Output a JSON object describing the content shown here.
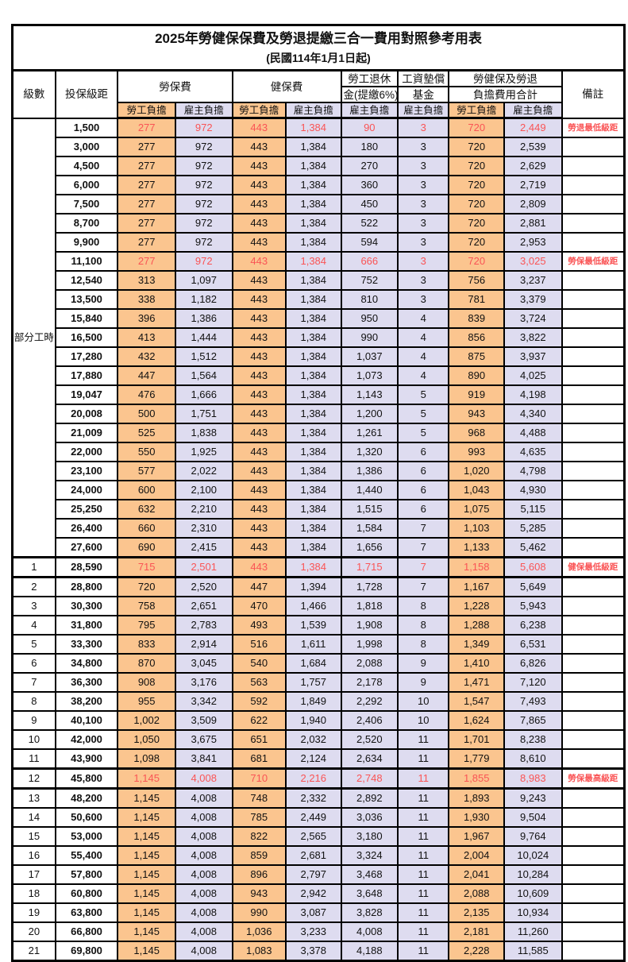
{
  "title": "2025年勞健保保費及勞退提繳三合一費用對照參考用表",
  "subtitle": "(民國114年1月1日起)",
  "header": {
    "level": "級數",
    "bracket": "投保級距",
    "labor_fee": "勞保費",
    "health_fee": "健保費",
    "pension_line1": "勞工退休",
    "pension_line2": "金(提繳6%)",
    "wage_fund_line1": "工資墊償",
    "wage_fund_line2": "基金",
    "total_line1": "勞健保及勞退",
    "total_line2": "負擔費用合計",
    "remark": "備註",
    "employee_label": "勞工負擔",
    "employer_label": "雇主負擔"
  },
  "part_time_label": "部分工時",
  "part_time_row_count": 23,
  "colors": {
    "employee_bg": "#fbc58f",
    "employer_bg": "#dedcf0",
    "red_text": "#fa5455",
    "border": "#000000"
  },
  "rows": [
    {
      "lv": "",
      "br": "1,500",
      "v": [
        "277",
        "972",
        "443",
        "1,384",
        "90",
        "3",
        "720",
        "2,449"
      ],
      "red": true,
      "rm": "勞退最低級距",
      "thick": false
    },
    {
      "lv": "",
      "br": "3,000",
      "v": [
        "277",
        "972",
        "443",
        "1,384",
        "180",
        "3",
        "720",
        "2,539"
      ],
      "red": false,
      "rm": "",
      "thick": false
    },
    {
      "lv": "",
      "br": "4,500",
      "v": [
        "277",
        "972",
        "443",
        "1,384",
        "270",
        "3",
        "720",
        "2,629"
      ],
      "red": false,
      "rm": "",
      "thick": false
    },
    {
      "lv": "",
      "br": "6,000",
      "v": [
        "277",
        "972",
        "443",
        "1,384",
        "360",
        "3",
        "720",
        "2,719"
      ],
      "red": false,
      "rm": "",
      "thick": false
    },
    {
      "lv": "",
      "br": "7,500",
      "v": [
        "277",
        "972",
        "443",
        "1,384",
        "450",
        "3",
        "720",
        "2,809"
      ],
      "red": false,
      "rm": "",
      "thick": false
    },
    {
      "lv": "",
      "br": "8,700",
      "v": [
        "277",
        "972",
        "443",
        "1,384",
        "522",
        "3",
        "720",
        "2,881"
      ],
      "red": false,
      "rm": "",
      "thick": false
    },
    {
      "lv": "",
      "br": "9,900",
      "v": [
        "277",
        "972",
        "443",
        "1,384",
        "594",
        "3",
        "720",
        "2,953"
      ],
      "red": false,
      "rm": "",
      "thick": false
    },
    {
      "lv": "",
      "br": "11,100",
      "v": [
        "277",
        "972",
        "443",
        "1,384",
        "666",
        "3",
        "720",
        "3,025"
      ],
      "red": true,
      "rm": "勞保最低級距",
      "thick": false
    },
    {
      "lv": "",
      "br": "12,540",
      "v": [
        "313",
        "1,097",
        "443",
        "1,384",
        "752",
        "3",
        "756",
        "3,237"
      ],
      "red": false,
      "rm": "",
      "thick": false
    },
    {
      "lv": "",
      "br": "13,500",
      "v": [
        "338",
        "1,182",
        "443",
        "1,384",
        "810",
        "3",
        "781",
        "3,379"
      ],
      "red": false,
      "rm": "",
      "thick": false
    },
    {
      "lv": "",
      "br": "15,840",
      "v": [
        "396",
        "1,386",
        "443",
        "1,384",
        "950",
        "4",
        "839",
        "3,724"
      ],
      "red": false,
      "rm": "",
      "thick": false
    },
    {
      "lv": "",
      "br": "16,500",
      "v": [
        "413",
        "1,444",
        "443",
        "1,384",
        "990",
        "4",
        "856",
        "3,822"
      ],
      "red": false,
      "rm": "",
      "thick": false
    },
    {
      "lv": "",
      "br": "17,280",
      "v": [
        "432",
        "1,512",
        "443",
        "1,384",
        "1,037",
        "4",
        "875",
        "3,937"
      ],
      "red": false,
      "rm": "",
      "thick": false
    },
    {
      "lv": "",
      "br": "17,880",
      "v": [
        "447",
        "1,564",
        "443",
        "1,384",
        "1,073",
        "4",
        "890",
        "4,025"
      ],
      "red": false,
      "rm": "",
      "thick": false
    },
    {
      "lv": "",
      "br": "19,047",
      "v": [
        "476",
        "1,666",
        "443",
        "1,384",
        "1,143",
        "5",
        "919",
        "4,198"
      ],
      "red": false,
      "rm": "",
      "thick": false
    },
    {
      "lv": "",
      "br": "20,008",
      "v": [
        "500",
        "1,751",
        "443",
        "1,384",
        "1,200",
        "5",
        "943",
        "4,340"
      ],
      "red": false,
      "rm": "",
      "thick": false
    },
    {
      "lv": "",
      "br": "21,009",
      "v": [
        "525",
        "1,838",
        "443",
        "1,384",
        "1,261",
        "5",
        "968",
        "4,488"
      ],
      "red": false,
      "rm": "",
      "thick": false
    },
    {
      "lv": "",
      "br": "22,000",
      "v": [
        "550",
        "1,925",
        "443",
        "1,384",
        "1,320",
        "6",
        "993",
        "4,635"
      ],
      "red": false,
      "rm": "",
      "thick": false
    },
    {
      "lv": "",
      "br": "23,100",
      "v": [
        "577",
        "2,022",
        "443",
        "1,384",
        "1,386",
        "6",
        "1,020",
        "4,798"
      ],
      "red": false,
      "rm": "",
      "thick": false
    },
    {
      "lv": "",
      "br": "24,000",
      "v": [
        "600",
        "2,100",
        "443",
        "1,384",
        "1,440",
        "6",
        "1,043",
        "4,930"
      ],
      "red": false,
      "rm": "",
      "thick": false
    },
    {
      "lv": "",
      "br": "25,250",
      "v": [
        "632",
        "2,210",
        "443",
        "1,384",
        "1,515",
        "6",
        "1,075",
        "5,115"
      ],
      "red": false,
      "rm": "",
      "thick": false
    },
    {
      "lv": "",
      "br": "26,400",
      "v": [
        "660",
        "2,310",
        "443",
        "1,384",
        "1,584",
        "7",
        "1,103",
        "5,285"
      ],
      "red": false,
      "rm": "",
      "thick": false
    },
    {
      "lv": "",
      "br": "27,600",
      "v": [
        "690",
        "2,415",
        "443",
        "1,384",
        "1,656",
        "7",
        "1,133",
        "5,462"
      ],
      "red": false,
      "rm": "",
      "thick": false
    },
    {
      "lv": "1",
      "br": "28,590",
      "v": [
        "715",
        "2,501",
        "443",
        "1,384",
        "1,715",
        "7",
        "1,158",
        "5,608"
      ],
      "red": true,
      "rm": "健保最低級距",
      "thick": true
    },
    {
      "lv": "2",
      "br": "28,800",
      "v": [
        "720",
        "2,520",
        "447",
        "1,394",
        "1,728",
        "7",
        "1,167",
        "5,649"
      ],
      "red": false,
      "rm": "",
      "thick": false
    },
    {
      "lv": "3",
      "br": "30,300",
      "v": [
        "758",
        "2,651",
        "470",
        "1,466",
        "1,818",
        "8",
        "1,228",
        "5,943"
      ],
      "red": false,
      "rm": "",
      "thick": false
    },
    {
      "lv": "4",
      "br": "31,800",
      "v": [
        "795",
        "2,783",
        "493",
        "1,539",
        "1,908",
        "8",
        "1,288",
        "6,238"
      ],
      "red": false,
      "rm": "",
      "thick": false
    },
    {
      "lv": "5",
      "br": "33,300",
      "v": [
        "833",
        "2,914",
        "516",
        "1,611",
        "1,998",
        "8",
        "1,349",
        "6,531"
      ],
      "red": false,
      "rm": "",
      "thick": false
    },
    {
      "lv": "6",
      "br": "34,800",
      "v": [
        "870",
        "3,045",
        "540",
        "1,684",
        "2,088",
        "9",
        "1,410",
        "6,826"
      ],
      "red": false,
      "rm": "",
      "thick": false
    },
    {
      "lv": "7",
      "br": "36,300",
      "v": [
        "908",
        "3,176",
        "563",
        "1,757",
        "2,178",
        "9",
        "1,471",
        "7,120"
      ],
      "red": false,
      "rm": "",
      "thick": false
    },
    {
      "lv": "8",
      "br": "38,200",
      "v": [
        "955",
        "3,342",
        "592",
        "1,849",
        "2,292",
        "10",
        "1,547",
        "7,493"
      ],
      "red": false,
      "rm": "",
      "thick": false
    },
    {
      "lv": "9",
      "br": "40,100",
      "v": [
        "1,002",
        "3,509",
        "622",
        "1,940",
        "2,406",
        "10",
        "1,624",
        "7,865"
      ],
      "red": false,
      "rm": "",
      "thick": false
    },
    {
      "lv": "10",
      "br": "42,000",
      "v": [
        "1,050",
        "3,675",
        "651",
        "2,032",
        "2,520",
        "11",
        "1,701",
        "8,238"
      ],
      "red": false,
      "rm": "",
      "thick": false
    },
    {
      "lv": "11",
      "br": "43,900",
      "v": [
        "1,098",
        "3,841",
        "681",
        "2,124",
        "2,634",
        "11",
        "1,779",
        "8,610"
      ],
      "red": false,
      "rm": "",
      "thick": false
    },
    {
      "lv": "12",
      "br": "45,800",
      "v": [
        "1,145",
        "4,008",
        "710",
        "2,216",
        "2,748",
        "11",
        "1,855",
        "8,983"
      ],
      "red": true,
      "rm": "勞保最高級距",
      "thick": true
    },
    {
      "lv": "13",
      "br": "48,200",
      "v": [
        "1,145",
        "4,008",
        "748",
        "2,332",
        "2,892",
        "11",
        "1,893",
        "9,243"
      ],
      "red": false,
      "rm": "",
      "thick": false
    },
    {
      "lv": "14",
      "br": "50,600",
      "v": [
        "1,145",
        "4,008",
        "785",
        "2,449",
        "3,036",
        "11",
        "1,930",
        "9,504"
      ],
      "red": false,
      "rm": "",
      "thick": false
    },
    {
      "lv": "15",
      "br": "53,000",
      "v": [
        "1,145",
        "4,008",
        "822",
        "2,565",
        "3,180",
        "11",
        "1,967",
        "9,764"
      ],
      "red": false,
      "rm": "",
      "thick": false
    },
    {
      "lv": "16",
      "br": "55,400",
      "v": [
        "1,145",
        "4,008",
        "859",
        "2,681",
        "3,324",
        "11",
        "2,004",
        "10,024"
      ],
      "red": false,
      "rm": "",
      "thick": false
    },
    {
      "lv": "17",
      "br": "57,800",
      "v": [
        "1,145",
        "4,008",
        "896",
        "2,797",
        "3,468",
        "11",
        "2,041",
        "10,284"
      ],
      "red": false,
      "rm": "",
      "thick": false
    },
    {
      "lv": "18",
      "br": "60,800",
      "v": [
        "1,145",
        "4,008",
        "943",
        "2,942",
        "3,648",
        "11",
        "2,088",
        "10,609"
      ],
      "red": false,
      "rm": "",
      "thick": false
    },
    {
      "lv": "19",
      "br": "63,800",
      "v": [
        "1,145",
        "4,008",
        "990",
        "3,087",
        "3,828",
        "11",
        "2,135",
        "10,934"
      ],
      "red": false,
      "rm": "",
      "thick": false
    },
    {
      "lv": "20",
      "br": "66,800",
      "v": [
        "1,145",
        "4,008",
        "1,036",
        "3,233",
        "4,008",
        "11",
        "2,181",
        "11,260"
      ],
      "red": false,
      "rm": "",
      "thick": false
    },
    {
      "lv": "21",
      "br": "69,800",
      "v": [
        "1,145",
        "4,008",
        "1,083",
        "3,378",
        "4,188",
        "11",
        "2,228",
        "11,585"
      ],
      "red": false,
      "rm": "",
      "thick": false
    }
  ]
}
